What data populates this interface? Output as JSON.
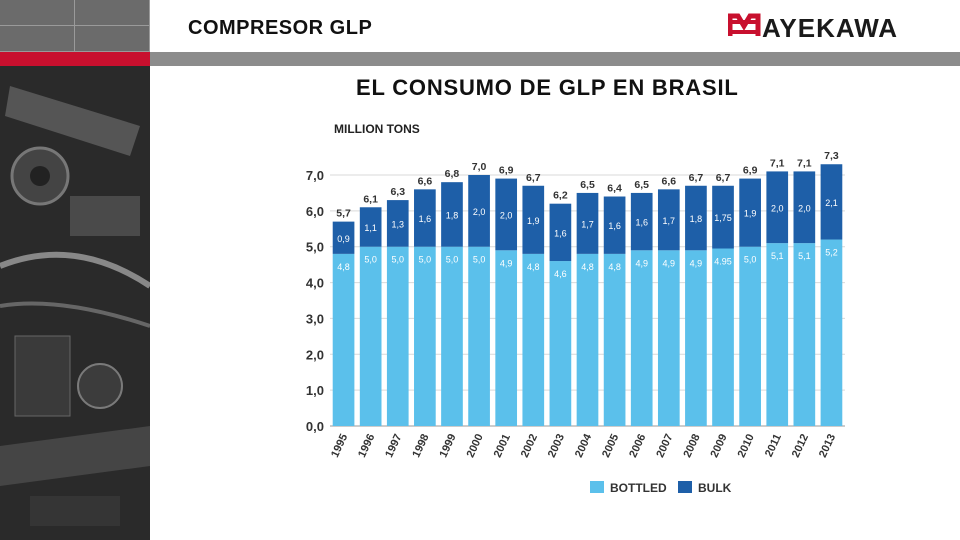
{
  "header": {
    "title": "COMPRESOR GLP",
    "logo_text": "MAYEKAWA"
  },
  "slide": {
    "title": "EL CONSUMO DE GLP EN BRASIL"
  },
  "colors": {
    "accent_red": "#c8102e",
    "bottled": "#5bc0eb",
    "bulk": "#1e5fa8",
    "header_gray": "#8c8c8c"
  },
  "chart_data": {
    "type": "bar",
    "stacked": true,
    "unit_label": "MILLION TONS",
    "categories": [
      "1995",
      "1996",
      "1997",
      "1998",
      "1999",
      "2000",
      "2001",
      "2002",
      "2003",
      "2004",
      "2005",
      "2006",
      "2007",
      "2008",
      "2009",
      "2010",
      "2011",
      "2012",
      "2013"
    ],
    "series": [
      {
        "name": "BOTTLED",
        "values": [
          4.8,
          5.0,
          5.0,
          5.0,
          5.0,
          5.0,
          4.9,
          4.8,
          4.6,
          4.8,
          4.8,
          4.9,
          4.9,
          4.9,
          4.95,
          5.0,
          5.1,
          5.1,
          5.2
        ],
        "labels": [
          "4,8",
          "5,0",
          "5,0",
          "5,0",
          "5,0",
          "5,0",
          "4,9",
          "4,8",
          "4,6",
          "4,8",
          "4,8",
          "4,9",
          "4,9",
          "4,9",
          "4.95",
          "5,0",
          "5,1",
          "5,1",
          "5,2"
        ]
      },
      {
        "name": "BULK",
        "values": [
          0.9,
          1.1,
          1.3,
          1.6,
          1.8,
          2.0,
          2.0,
          1.9,
          1.6,
          1.7,
          1.6,
          1.6,
          1.7,
          1.8,
          1.75,
          1.9,
          2.0,
          2.0,
          2.1
        ],
        "labels": [
          "0,9",
          "1,1",
          "1,3",
          "1,6",
          "1,8",
          "2,0",
          "2,0",
          "1,9",
          "1,6",
          "1,7",
          "1,6",
          "1,6",
          "1,7",
          "1,8",
          "1,75",
          "1,9",
          "2,0",
          "2,0",
          "2,1"
        ]
      }
    ],
    "totals": [
      "5,7",
      "6,1",
      "6,3",
      "6,6",
      "6,8",
      "7,0",
      "6,9",
      "6,7",
      "6,2",
      "6,5",
      "6,4",
      "6,5",
      "6,6",
      "6,7",
      "6,7",
      "6,9",
      "7,1",
      "7,1",
      "7,3"
    ],
    "ylim": [
      0,
      7
    ],
    "yticks": [
      0,
      1,
      2,
      3,
      4,
      5,
      6,
      7
    ],
    "ytick_labels": [
      "0,0",
      "1,0",
      "2,0",
      "3,0",
      "4,0",
      "5,0",
      "6,0",
      "7,0"
    ],
    "grid": true,
    "legend_position": "bottom-right"
  }
}
